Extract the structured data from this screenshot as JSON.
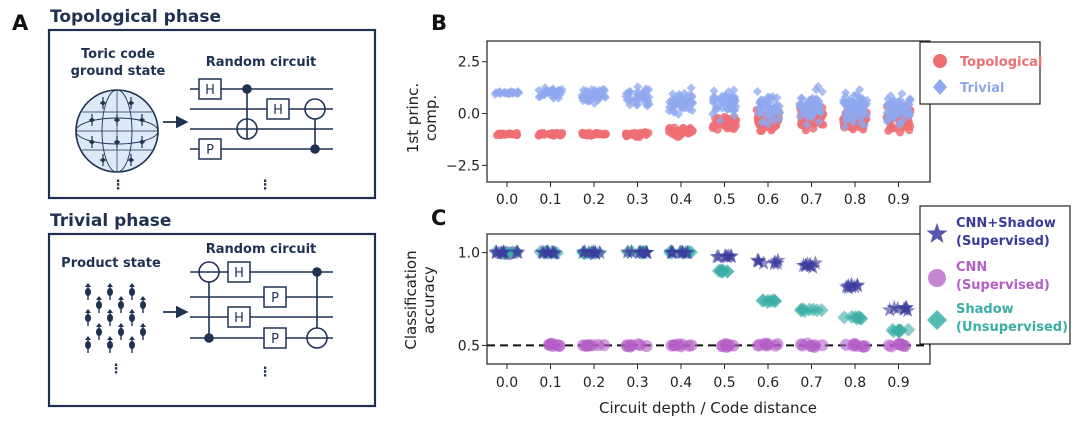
{
  "labels": {
    "panel_a": "A",
    "panel_b": "B",
    "panel_c": "C"
  },
  "diagram": {
    "topological": {
      "title": "Topological phase",
      "state_line1": "Toric code",
      "state_line2": "ground state",
      "circuit_title": "Random circuit",
      "gates": [
        "H",
        "H",
        "P"
      ],
      "ellipsis": "⋮"
    },
    "trivial": {
      "title": "Trivial phase",
      "state_label": "Product state",
      "circuit_title": "Random circuit",
      "gates": [
        "H",
        "H",
        "P",
        "P"
      ],
      "ellipsis": "⋮"
    }
  },
  "colors": {
    "topological": "#ee6e73",
    "trivial": "#8fa8ef",
    "cnn_shadow": "#3b3b9c",
    "cnn": "#b45ec6",
    "shadow": "#3aaea6",
    "navy": "#1f3252"
  },
  "chart_data": [
    {
      "type": "scatter",
      "title": "",
      "ylabel_line1": "1st princ.",
      "ylabel_line2": "comp.",
      "x_categories": [
        "0.0",
        "0.1",
        "0.2",
        "0.3",
        "0.4",
        "0.5",
        "0.6",
        "0.7",
        "0.8",
        "0.9"
      ],
      "ylim": [
        -3.3,
        3.5
      ],
      "yticks": [
        "2.5",
        "0.0",
        "−2.5"
      ],
      "ytick_values": [
        2.5,
        0.0,
        -2.5
      ],
      "series": [
        {
          "name": "Topological",
          "marker": "circle",
          "centers": [
            -1.0,
            -1.0,
            -1.0,
            -1.0,
            -0.9,
            -0.5,
            -0.3,
            -0.2,
            -0.2,
            -0.2
          ],
          "spread": [
            0.08,
            0.1,
            0.12,
            0.15,
            0.35,
            0.6,
            0.75,
            0.85,
            0.9,
            1.0
          ]
        },
        {
          "name": "Trivial",
          "marker": "diamond",
          "centers": [
            1.0,
            1.0,
            0.9,
            0.8,
            0.6,
            0.5,
            0.3,
            0.3,
            0.3,
            0.2
          ],
          "spread": [
            0.08,
            0.3,
            0.5,
            0.65,
            0.8,
            1.0,
            1.1,
            1.1,
            1.2,
            1.1
          ]
        }
      ],
      "legend": [
        "Topological",
        "Trivial"
      ]
    },
    {
      "type": "scatter",
      "title": "",
      "xlabel": "Circuit depth / Code distance",
      "ylabel_line1": "Classification",
      "ylabel_line2": "accuracy",
      "x_categories": [
        "0.0",
        "0.1",
        "0.2",
        "0.3",
        "0.4",
        "0.5",
        "0.6",
        "0.7",
        "0.8",
        "0.9"
      ],
      "ylim": [
        0.4,
        1.1
      ],
      "yticks": [
        "1.0",
        "0.5"
      ],
      "ytick_values": [
        1.0,
        0.5
      ],
      "reference_line": 0.5,
      "series": [
        {
          "name": "CNN+Shadow (Supervised)",
          "marker": "star",
          "values": [
            1.0,
            1.0,
            1.0,
            1.0,
            1.0,
            0.98,
            0.95,
            0.93,
            0.82,
            0.7
          ]
        },
        {
          "name": "CNN (Supervised)",
          "marker": "circle",
          "values": [
            1.0,
            0.5,
            0.5,
            0.5,
            0.5,
            0.5,
            0.5,
            0.5,
            0.5,
            0.5
          ]
        },
        {
          "name": "Shadow (Unsupervised)",
          "marker": "diamond",
          "values": [
            1.0,
            1.0,
            1.0,
            1.0,
            1.0,
            0.9,
            0.74,
            0.69,
            0.65,
            0.58
          ]
        }
      ],
      "legend": [
        {
          "line1": "CNN+Shadow",
          "line2": "(Supervised)"
        },
        {
          "line1": "CNN",
          "line2": "(Supervised)"
        },
        {
          "line1": "Shadow",
          "line2": "(Unsupervised)"
        }
      ]
    }
  ]
}
